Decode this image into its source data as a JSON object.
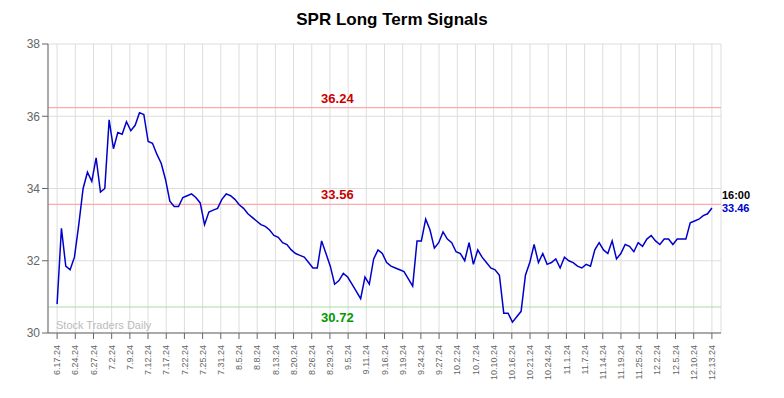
{
  "chart_data": {
    "type": "line",
    "title": "SPR Long Term Signals",
    "x": [
      0,
      1,
      2,
      3,
      4,
      5,
      6,
      7,
      8,
      9,
      10,
      11,
      12,
      13,
      14,
      15,
      16,
      17,
      18,
      19,
      20,
      21,
      22,
      23,
      24,
      25,
      26,
      27,
      28,
      29,
      30,
      31,
      32,
      33,
      34,
      35,
      36,
      37,
      38,
      39,
      40,
      41,
      42,
      43,
      44,
      45,
      46,
      47,
      48,
      49,
      50,
      51,
      52,
      53,
      54,
      55,
      56,
      57,
      58,
      59,
      60,
      61,
      62,
      63,
      64,
      65,
      66,
      67,
      68,
      69,
      70,
      71,
      72,
      73,
      74,
      75,
      76,
      77,
      78,
      79,
      80,
      81,
      82,
      83,
      84,
      85,
      86,
      87,
      88,
      89,
      90,
      91,
      92,
      93,
      94,
      95,
      96,
      97,
      98,
      99,
      100,
      101,
      102,
      103,
      104,
      105,
      106,
      107,
      108,
      109,
      110,
      111,
      112,
      113,
      114,
      115,
      116,
      117,
      118,
      119,
      120,
      121,
      122,
      123,
      124,
      125,
      126,
      127,
      128,
      129,
      130,
      131,
      132,
      133,
      134,
      135,
      136,
      137,
      138,
      139,
      140,
      141,
      142,
      143,
      144,
      145,
      146,
      147,
      148,
      149,
      150,
      151
    ],
    "values": [
      30.8,
      32.9,
      31.85,
      31.75,
      32.1,
      33.0,
      34.0,
      34.45,
      34.2,
      34.85,
      33.9,
      34.0,
      35.9,
      35.1,
      35.55,
      35.5,
      35.85,
      35.6,
      35.75,
      36.1,
      36.05,
      35.3,
      35.25,
      34.95,
      34.7,
      34.25,
      33.65,
      33.5,
      33.5,
      33.75,
      33.8,
      33.85,
      33.75,
      33.6,
      33.0,
      33.35,
      33.4,
      33.45,
      33.7,
      33.85,
      33.8,
      33.7,
      33.55,
      33.45,
      33.3,
      33.2,
      33.1,
      33.0,
      32.95,
      32.85,
      32.7,
      32.65,
      32.5,
      32.45,
      32.3,
      32.2,
      32.15,
      32.1,
      31.95,
      31.8,
      31.8,
      32.55,
      32.2,
      31.85,
      31.35,
      31.45,
      31.65,
      31.55,
      31.35,
      31.15,
      30.95,
      31.55,
      31.35,
      32.05,
      32.3,
      32.2,
      31.95,
      31.85,
      31.8,
      31.75,
      31.7,
      31.5,
      31.3,
      32.55,
      32.55,
      33.15,
      32.85,
      32.35,
      32.5,
      32.8,
      32.6,
      32.5,
      32.25,
      32.2,
      32.0,
      32.5,
      31.9,
      32.3,
      32.1,
      31.95,
      31.8,
      31.75,
      31.6,
      30.55,
      30.55,
      30.3,
      30.45,
      30.6,
      31.6,
      31.95,
      32.45,
      31.95,
      32.2,
      31.9,
      31.95,
      32.05,
      31.8,
      32.1,
      32.0,
      31.95,
      31.85,
      31.8,
      31.9,
      31.85,
      32.3,
      32.5,
      32.3,
      32.2,
      32.55,
      32.05,
      32.2,
      32.45,
      32.4,
      32.25,
      32.5,
      32.4,
      32.6,
      32.7,
      32.55,
      32.45,
      32.6,
      32.6,
      32.45,
      32.6,
      32.6,
      32.6,
      33.05,
      33.1,
      33.15,
      33.25,
      33.3,
      33.46
    ],
    "color": "#0000cc",
    "xlim": [
      -2.0972,
      153.0972
    ],
    "xticks": [
      {
        "value": 0,
        "label": "6.17.24"
      },
      {
        "value": 4.1944,
        "label": "6.24.24"
      },
      {
        "value": 8.3889,
        "label": "6.27.24"
      },
      {
        "value": 12.5833,
        "label": "7.2.24"
      },
      {
        "value": 16.7778,
        "label": "7.9.24"
      },
      {
        "value": 20.9722,
        "label": "7.12.24"
      },
      {
        "value": 25.1667,
        "label": "7.17.24"
      },
      {
        "value": 29.3611,
        "label": "7.22.24"
      },
      {
        "value": 33.5556,
        "label": "7.25.24"
      },
      {
        "value": 37.75,
        "label": "7.31.24"
      },
      {
        "value": 41.9444,
        "label": "8.5.24"
      },
      {
        "value": 46.1389,
        "label": "8.8.24"
      },
      {
        "value": 50.3333,
        "label": "8.13.24"
      },
      {
        "value": 54.5278,
        "label": "8.20.24"
      },
      {
        "value": 58.7222,
        "label": "8.26.24"
      },
      {
        "value": 62.9167,
        "label": "8.29.24"
      },
      {
        "value": 67.1111,
        "label": "9.5.24"
      },
      {
        "value": 71.3056,
        "label": "9.11.24"
      },
      {
        "value": 75.5,
        "label": "9.16.24"
      },
      {
        "value": 79.6944,
        "label": "9.19.24"
      },
      {
        "value": 83.8889,
        "label": "9.24.24"
      },
      {
        "value": 88.0833,
        "label": "9.27.24"
      },
      {
        "value": 92.2778,
        "label": "10.2.24"
      },
      {
        "value": 96.4722,
        "label": "10.7.24"
      },
      {
        "value": 100.6667,
        "label": "10.10.24"
      },
      {
        "value": 104.8611,
        "label": "10.16.24"
      },
      {
        "value": 109.0556,
        "label": "10.21.24"
      },
      {
        "value": 113.25,
        "label": "10.24.24"
      },
      {
        "value": 117.4444,
        "label": "11.1.24"
      },
      {
        "value": 121.6389,
        "label": "11.7.24"
      },
      {
        "value": 125.8333,
        "label": "11.14.24"
      },
      {
        "value": 130.0278,
        "label": "11.19.24"
      },
      {
        "value": 134.2222,
        "label": "11.25.24"
      },
      {
        "value": 138.4167,
        "label": "12.2.24"
      },
      {
        "value": 142.6111,
        "label": "12.5.24"
      },
      {
        "value": 146.8056,
        "label": "12.10.24"
      },
      {
        "value": 151,
        "label": "12.13.24"
      }
    ],
    "ylim": [
      30,
      38
    ],
    "yticks": [
      30,
      32,
      34,
      36,
      38
    ],
    "grid": true,
    "hlines": [
      {
        "value": 36.24,
        "label": "36.24",
        "color": "#ffaaaa",
        "label_color": "#cc0000"
      },
      {
        "value": 33.56,
        "label": "33.56",
        "color": "#ffaaaa",
        "label_color": "#cc0000"
      },
      {
        "value": 30.72,
        "label": "30.72",
        "color": "#aaddaa",
        "label_color": "#009900"
      }
    ],
    "end_annotations": [
      {
        "text": "16:00",
        "color": "#000000"
      },
      {
        "text": "33.46",
        "color": "#0000cc"
      }
    ],
    "watermark": {
      "text": "Stock Traders Daily",
      "color": "#bbbbbb"
    }
  }
}
